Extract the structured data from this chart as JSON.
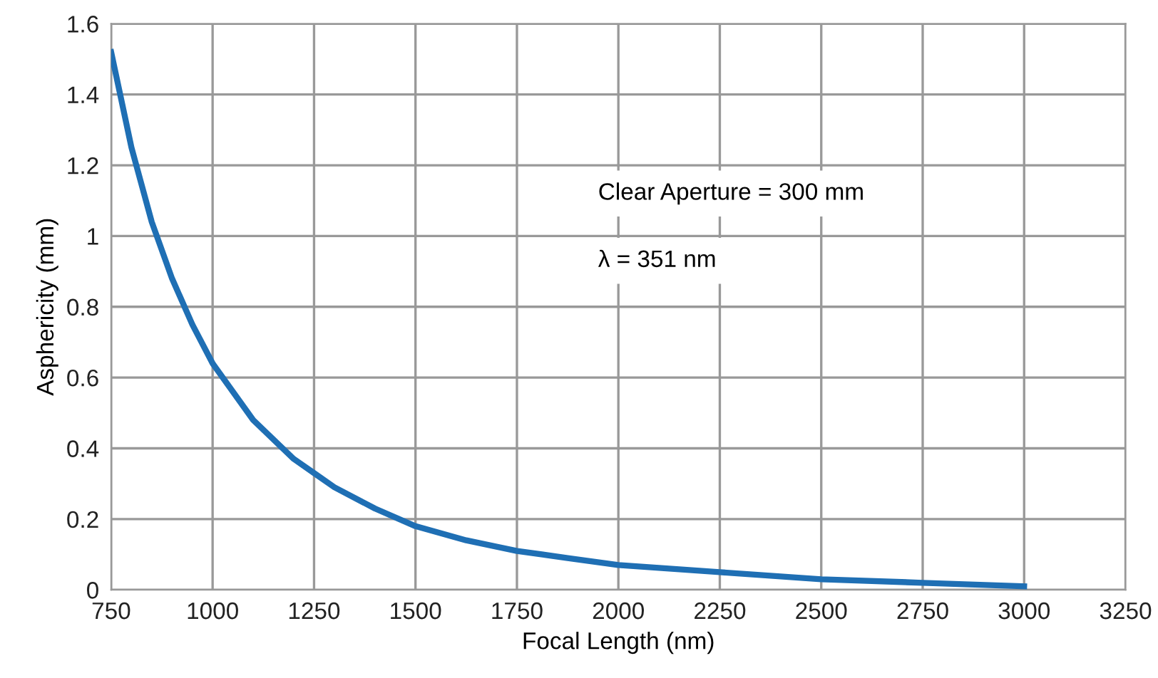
{
  "chart_data": {
    "type": "line",
    "xlabel": "Focal Length (nm)",
    "ylabel": "Asphericity (mm)",
    "annotations": [
      "Clear Aperture = 300 mm",
      "λ = 351 nm"
    ],
    "xlim": [
      750,
      3250
    ],
    "xticks": [
      750,
      1000,
      1250,
      1500,
      1750,
      2000,
      2250,
      2500,
      2750,
      3000,
      3250
    ],
    "ylim": [
      0,
      1.6
    ],
    "yticks": [
      0,
      0.2,
      0.4,
      0.6,
      0.8,
      {
        "value": 1,
        "label": "1"
      },
      1.2,
      1.4,
      1.6
    ],
    "grid": true,
    "marker": "none",
    "line_style": "solid",
    "series": [
      {
        "color": "#1f6fb4",
        "x": [
          750,
          800,
          850,
          900,
          950,
          1000,
          1100,
          1200,
          1250,
          1300,
          1400,
          1500,
          1625,
          1750,
          1875,
          2000,
          2250,
          2500,
          2750,
          3000
        ],
        "values": [
          1.52,
          1.25,
          1.04,
          0.88,
          0.75,
          0.64,
          0.48,
          0.37,
          0.33,
          0.29,
          0.23,
          0.18,
          0.14,
          0.11,
          0.09,
          0.07,
          0.05,
          0.03,
          0.02,
          0.01
        ]
      }
    ]
  }
}
